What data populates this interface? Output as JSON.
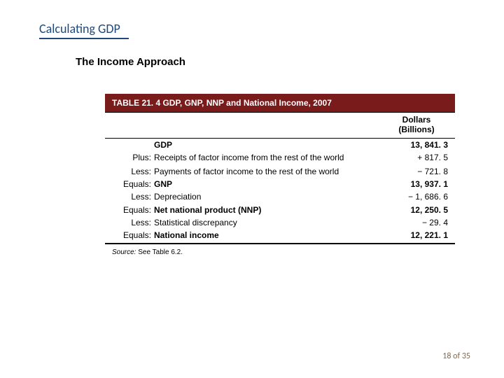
{
  "page": {
    "title": "Calculating GDP",
    "subtitle": "The Income Approach",
    "numbering": "18 of 35"
  },
  "colors": {
    "title_color": "#1f497d",
    "table_header_bg": "#7a1b1b",
    "table_header_text": "#ffffff",
    "page_num_color": "#7f6a4f"
  },
  "table": {
    "caption": "TABLE 21. 4  GDP, GNP, NNP and National Income, 2007",
    "column_header_line1": "Dollars",
    "column_header_line2": "(Billions)",
    "rows": [
      {
        "prefix": "",
        "label": "GDP",
        "value": "13, 841. 3",
        "bold_label": true,
        "bold_value": true
      },
      {
        "prefix": "Plus:",
        "label": "Receipts of factor income from the rest of the world",
        "value": "+ 817. 5"
      },
      {
        "prefix": "Less:",
        "label": "Payments of factor income to the rest of the world",
        "value": "− 721. 8",
        "gap_above": true
      },
      {
        "prefix": "Equals:",
        "label": "GNP",
        "value": "13, 937. 1",
        "bold_label": true,
        "bold_value": true
      },
      {
        "prefix": "Less:",
        "label": "Depreciation",
        "value": "− 1, 686. 6"
      },
      {
        "prefix": "Equals:",
        "label": "Net national product (NNP)",
        "value": "12, 250. 5",
        "bold_label": true,
        "bold_value": true
      },
      {
        "prefix": "Less:",
        "label": "Statistical discrepancy",
        "value": "− 29. 4"
      },
      {
        "prefix": "Equals:",
        "label": "National income",
        "value": "12, 221. 1",
        "bold_label": true,
        "bold_value": true
      }
    ],
    "source_label": "Source:",
    "source_text": "See Table 6.2."
  }
}
